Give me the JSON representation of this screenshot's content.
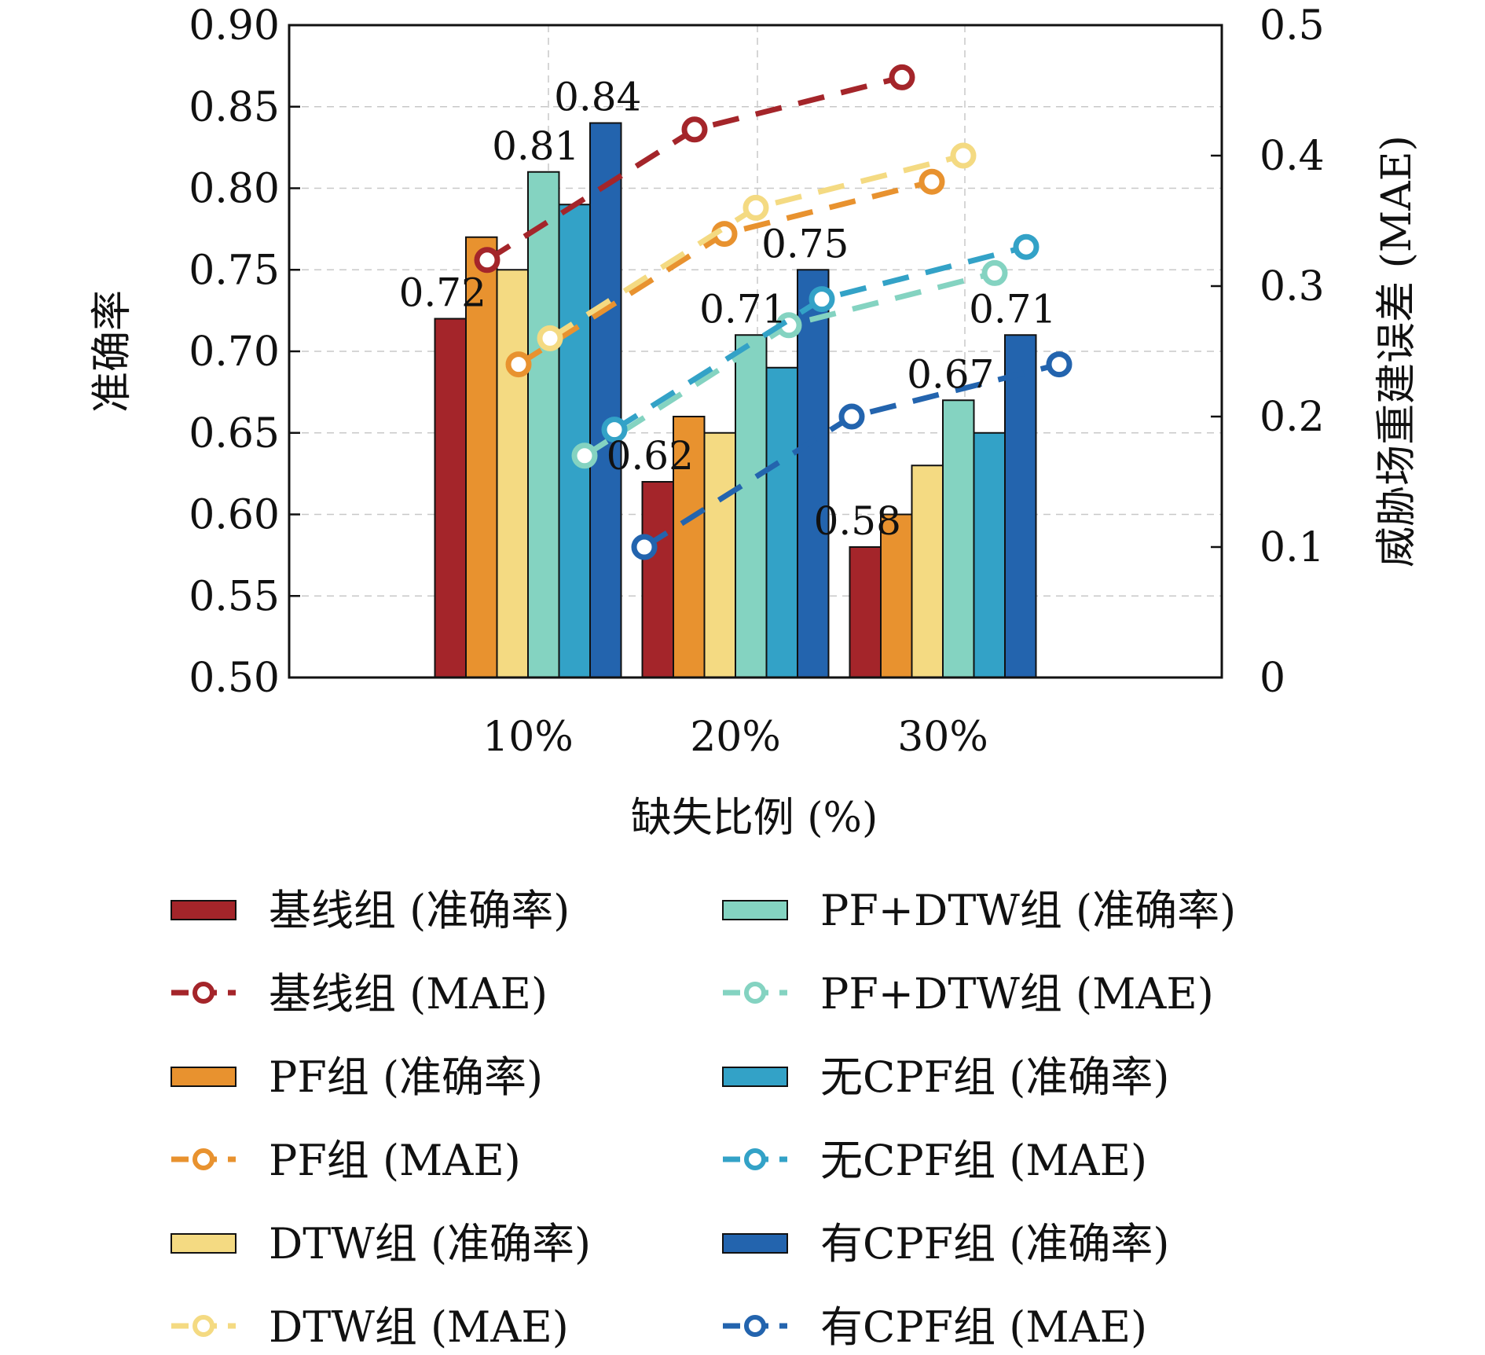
{
  "chart_data": {
    "type": "bar",
    "xlabel": "缺失比例 (%)",
    "ylabel_left": "准确率",
    "ylabel_right": "威胁场重建误差 (MAE)",
    "categories": [
      "10%",
      "20%",
      "30%"
    ],
    "ylim_left": [
      0.5,
      0.9
    ],
    "yticks_left": [
      "0.50",
      "0.55",
      "0.60",
      "0.65",
      "0.70",
      "0.75",
      "0.80",
      "0.85",
      "0.90"
    ],
    "ylim_right": [
      0,
      0.5
    ],
    "yticks_right": [
      "0",
      "0.1",
      "0.2",
      "0.3",
      "0.4",
      "0.5"
    ],
    "grid": true,
    "bar_series": [
      {
        "name": "基线组 (准确率)",
        "color": "#A4252A",
        "values": [
          0.72,
          0.62,
          0.58
        ]
      },
      {
        "name": "PF组 (准确率)",
        "color": "#E8922F",
        "values": [
          0.77,
          0.66,
          0.6
        ]
      },
      {
        "name": "DTW组 (准确率)",
        "color": "#F4DA82",
        "values": [
          0.75,
          0.65,
          0.63
        ]
      },
      {
        "name": "PF+DTW组 (准确率)",
        "color": "#84D3C1",
        "values": [
          0.81,
          0.71,
          0.67
        ]
      },
      {
        "name": "无CPF组 (准确率)",
        "color": "#33A2C7",
        "values": [
          0.79,
          0.69,
          0.65
        ]
      },
      {
        "name": "有CPF组 (准确率)",
        "color": "#2364AE",
        "values": [
          0.84,
          0.75,
          0.71
        ]
      }
    ],
    "data_labels": [
      {
        "series": 0,
        "category": 0,
        "text": "0.72"
      },
      {
        "series": 3,
        "category": 0,
        "text": "0.81"
      },
      {
        "series": 5,
        "category": 0,
        "text": "0.84"
      },
      {
        "series": 0,
        "category": 1,
        "text": "0.62"
      },
      {
        "series": 3,
        "category": 1,
        "text": "0.71"
      },
      {
        "series": 5,
        "category": 1,
        "text": "0.75"
      },
      {
        "series": 0,
        "category": 2,
        "text": "0.58"
      },
      {
        "series": 3,
        "category": 2,
        "text": "0.67"
      },
      {
        "series": 5,
        "category": 2,
        "text": "0.71"
      }
    ],
    "line_series": [
      {
        "name": "基线组 (MAE)",
        "color": "#A4252A",
        "values": [
          0.32,
          0.42,
          0.46
        ]
      },
      {
        "name": "PF组 (MAE)",
        "color": "#E8922F",
        "values": [
          0.24,
          0.34,
          0.38
        ]
      },
      {
        "name": "DTW组 (MAE)",
        "color": "#F4DA82",
        "values": [
          0.26,
          0.36,
          0.4
        ]
      },
      {
        "name": "PF+DTW组 (MAE)",
        "color": "#84D3C1",
        "values": [
          0.17,
          0.27,
          0.31
        ]
      },
      {
        "name": "无CPF组 (MAE)",
        "color": "#33A2C7",
        "values": [
          0.19,
          0.29,
          0.33
        ]
      },
      {
        "name": "有CPF组 (MAE)",
        "color": "#2364AE",
        "values": [
          0.1,
          0.2,
          0.24
        ]
      }
    ],
    "legend": {
      "placement": "bottom",
      "items": [
        {
          "label": "基线组 (准确率)",
          "kind": "bar",
          "color": "#A4252A"
        },
        {
          "label": "PF+DTW组 (准确率)",
          "kind": "bar",
          "color": "#84D3C1"
        },
        {
          "label": "基线组 (MAE)",
          "kind": "line",
          "color": "#A4252A"
        },
        {
          "label": "PF+DTW组 (MAE)",
          "kind": "line",
          "color": "#84D3C1"
        },
        {
          "label": "PF组 (准确率)",
          "kind": "bar",
          "color": "#E8922F"
        },
        {
          "label": "无CPF组 (准确率)",
          "kind": "bar",
          "color": "#33A2C7"
        },
        {
          "label": "PF组 (MAE)",
          "kind": "line",
          "color": "#E8922F"
        },
        {
          "label": "无CPF组 (MAE)",
          "kind": "line",
          "color": "#33A2C7"
        },
        {
          "label": "DTW组 (准确率)",
          "kind": "bar",
          "color": "#F4DA82"
        },
        {
          "label": "有CPF组 (准确率)",
          "kind": "bar",
          "color": "#2364AE"
        },
        {
          "label": "DTW组 (MAE)",
          "kind": "line",
          "color": "#F4DA82"
        },
        {
          "label": "有CPF组 (MAE)",
          "kind": "line",
          "color": "#2364AE"
        }
      ]
    }
  }
}
